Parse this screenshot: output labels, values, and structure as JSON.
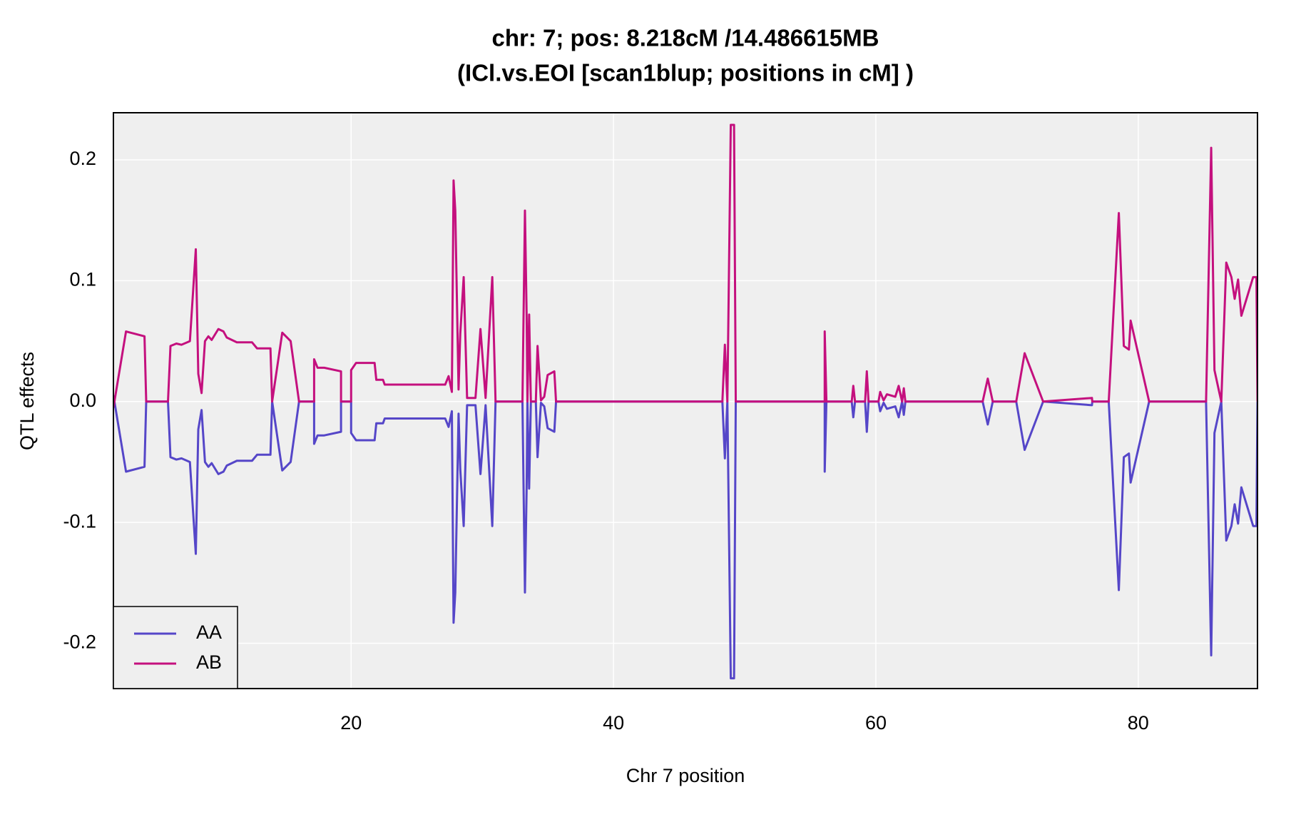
{
  "chart_data": {
    "type": "line",
    "title": "chr: 7; pos: 8.218cM /14.486615MB",
    "subtitle": "(ICl.vs.EOI [scan1blup; positions in cM] )",
    "x_label": "Chr 7 position",
    "y_label": "QTL effects",
    "x": [
      1.88,
      2.84,
      4.25,
      4.38,
      6.04,
      6.23,
      6.68,
      7.07,
      7.71,
      8.16,
      8.35,
      8.6,
      8.86,
      9.12,
      9.37,
      9.88,
      10.27,
      10.52,
      11.29,
      12.45,
      12.83,
      13.85,
      13.98,
      14.75,
      15.39,
      16.03,
      17.18,
      17.18,
      17.44,
      17.95,
      19.23,
      19.23,
      20,
      20,
      20.38,
      21.79,
      21.92,
      22.43,
      22.56,
      27.17,
      27.43,
      27.68,
      27.81,
      27.94,
      28.19,
      28.32,
      28.58,
      28.84,
      29.48,
      29.86,
      30.25,
      30.76,
      31.01,
      33.06,
      33.25,
      33.38,
      33.44,
      33.57,
      33.7,
      34.08,
      34.21,
      34.47,
      34.72,
      34.98,
      35.49,
      35.62,
      48.3,
      48.49,
      48.68,
      48.94,
      49.19,
      49.32,
      56.1,
      56.1,
      56.23,
      58.16,
      58.28,
      58.41,
      59.18,
      59.31,
      59.44,
      60.2,
      60.33,
      60.59,
      60.84,
      61.48,
      61.74,
      62,
      62.13,
      62.25,
      68.14,
      68.53,
      68.91,
      70.7,
      71.34,
      72.75,
      76.47,
      76.5,
      77.75,
      78.52,
      78.9,
      79.29,
      79.42,
      80.83,
      85.17,
      85.56,
      85.81,
      86.33,
      86.71,
      87.1,
      87.35,
      87.61,
      87.86,
      88.76,
      89.01,
      89.09
    ],
    "series": [
      {
        "name": "AA",
        "color": "#5546c8",
        "values": [
          0.005,
          -0.058,
          -0.054,
          0,
          0,
          -0.046,
          -0.048,
          -0.047,
          -0.05,
          -0.126,
          -0.023,
          -0.007,
          -0.05,
          -0.054,
          -0.051,
          -0.06,
          -0.058,
          -0.053,
          -0.049,
          -0.049,
          -0.044,
          -0.044,
          0,
          -0.057,
          -0.05,
          0,
          0,
          -0.035,
          -0.028,
          -0.028,
          -0.025,
          0,
          0,
          -0.026,
          -0.032,
          -0.032,
          -0.018,
          -0.018,
          -0.014,
          -0.014,
          -0.021,
          -0.008,
          -0.183,
          -0.158,
          -0.01,
          -0.056,
          -0.103,
          -0.003,
          -0.003,
          -0.06,
          -0.003,
          -0.103,
          0,
          0,
          -0.158,
          -0.071,
          0,
          -0.072,
          0,
          0,
          -0.046,
          -0.001,
          -0.004,
          -0.022,
          -0.025,
          0,
          0,
          -0.047,
          0,
          -0.229,
          -0.229,
          0,
          0,
          -0.058,
          0,
          0,
          -0.013,
          0,
          0,
          -0.025,
          0,
          0,
          -0.008,
          -0.001,
          -0.006,
          -0.004,
          -0.013,
          0,
          -0.011,
          0,
          0,
          -0.019,
          0,
          0,
          -0.04,
          0,
          -0.003,
          0,
          0,
          -0.156,
          -0.046,
          -0.043,
          -0.067,
          0,
          0,
          -0.21,
          -0.026,
          0,
          -0.115,
          -0.103,
          -0.085,
          -0.101,
          -0.071,
          -0.103,
          -0.103,
          0
        ]
      },
      {
        "name": "AB",
        "color": "#c4107e",
        "values": [
          -0.005,
          0.058,
          0.054,
          0,
          0,
          0.046,
          0.048,
          0.047,
          0.05,
          0.126,
          0.023,
          0.007,
          0.05,
          0.054,
          0.051,
          0.06,
          0.058,
          0.053,
          0.049,
          0.049,
          0.044,
          0.044,
          0,
          0.057,
          0.05,
          0,
          0,
          0.035,
          0.028,
          0.028,
          0.025,
          0,
          0,
          0.026,
          0.032,
          0.032,
          0.018,
          0.018,
          0.014,
          0.014,
          0.021,
          0.008,
          0.183,
          0.158,
          0.01,
          0.056,
          0.103,
          0.003,
          0.003,
          0.06,
          0.003,
          0.103,
          0,
          0,
          0.158,
          0.071,
          0,
          0.072,
          0,
          0,
          0.046,
          0.001,
          0.004,
          0.022,
          0.025,
          0,
          0,
          0.047,
          0,
          0.229,
          0.229,
          0,
          0,
          0.058,
          0,
          0,
          0.013,
          0,
          0,
          0.025,
          0,
          0,
          0.008,
          0.001,
          0.006,
          0.004,
          0.013,
          0,
          0.011,
          0,
          0,
          0.019,
          0,
          0,
          0.04,
          0,
          0.003,
          0,
          0,
          0.156,
          0.046,
          0.043,
          0.067,
          0,
          0,
          0.21,
          0.026,
          0,
          0.115,
          0.103,
          0.085,
          0.101,
          0.071,
          0.103,
          0.103,
          0
        ]
      }
    ],
    "xlim": [
      1.88,
      89.09
    ],
    "xticks": [
      20,
      40,
      60,
      80
    ],
    "ylim": [
      -0.2375,
      0.239
    ],
    "yticks": [
      -0.2,
      -0.1,
      {
        "value": 0,
        "label": "0.0"
      },
      0.1,
      0.2
    ],
    "grid": true,
    "legend": "bottomleft"
  }
}
